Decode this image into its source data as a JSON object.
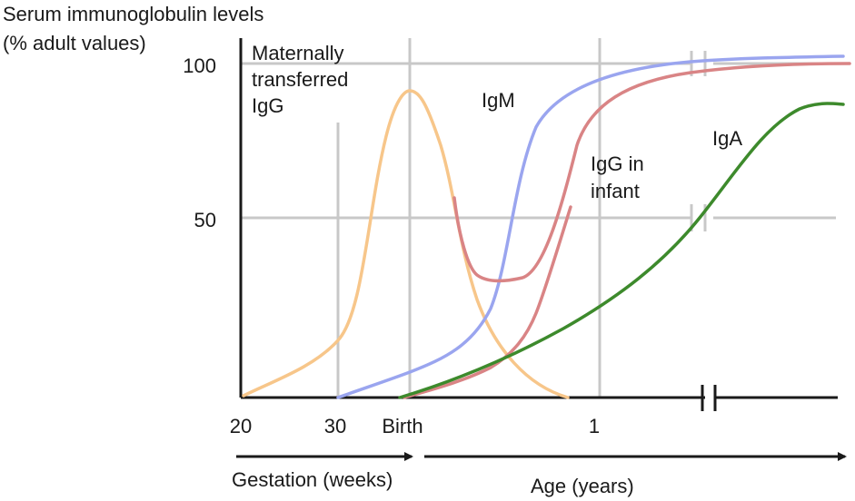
{
  "chart_data": {
    "type": "line",
    "ylabel_line1": "Serum immunoglobulin levels",
    "ylabel_line2": "(% adult values)",
    "y_ticks": [
      {
        "value": 100,
        "label": "100"
      },
      {
        "value": 50,
        "label": "50"
      }
    ],
    "x_ticks": [
      {
        "label": "20"
      },
      {
        "label": "30"
      },
      {
        "label": "Birth"
      },
      {
        "label": "1"
      }
    ],
    "gestation_label": "Gestation (weeks)",
    "age_label": "Age (years)",
    "ylim": [
      0,
      100
    ],
    "colors": {
      "maternal_igg": "#f7c68a",
      "igm": "#9aa5ef",
      "igg_infant": "#d98485",
      "iga": "#3d8a2c",
      "grid": "#c8c8c8",
      "axis": "#1a1a1a"
    },
    "series": [
      {
        "name": "Maternally transferred IgG",
        "label_lines": [
          "Maternally",
          "transferred",
          "IgG"
        ],
        "color": "#f7c68a"
      },
      {
        "name": "IgM",
        "label_lines": [
          "IgM"
        ],
        "color": "#9aa5ef"
      },
      {
        "name": "IgG in infant",
        "label_lines": [
          "IgG in",
          "infant"
        ],
        "color": "#d98485"
      },
      {
        "name": "IgA",
        "label_lines": [
          "IgA"
        ],
        "color": "#3d8a2c"
      }
    ]
  }
}
